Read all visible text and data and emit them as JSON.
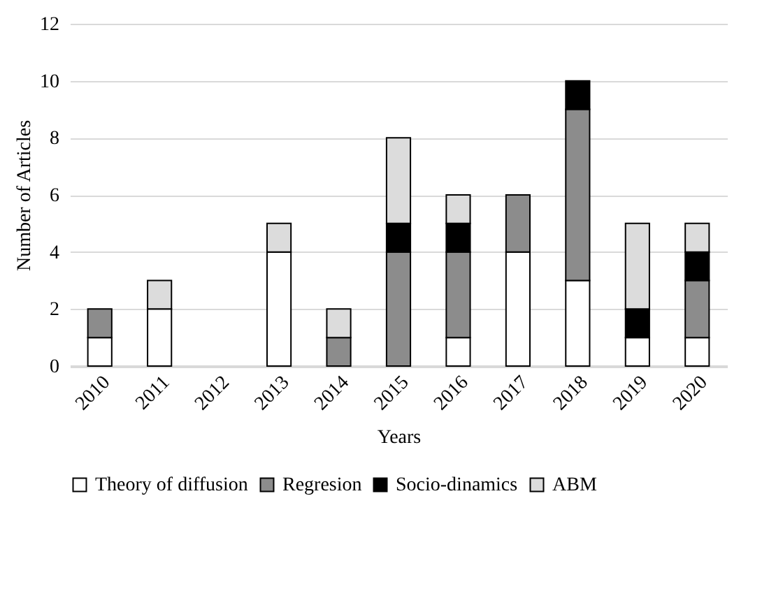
{
  "chart_data": {
    "type": "bar",
    "stacked": true,
    "xlabel": "Years",
    "ylabel": "Number of Articles",
    "categories": [
      "2010",
      "2011",
      "2012",
      "2013",
      "2014",
      "2015",
      "2016",
      "2017",
      "2018",
      "2019",
      "2020"
    ],
    "series": [
      {
        "name": "Theory of diffusion",
        "color": "#ffffff",
        "values": [
          1,
          2,
          0,
          4,
          0,
          0,
          1,
          4,
          3,
          1,
          1
        ]
      },
      {
        "name": "Regresion",
        "color": "#8c8c8c",
        "values": [
          1,
          0,
          0,
          0,
          1,
          4,
          3,
          2,
          6,
          0,
          2
        ]
      },
      {
        "name": "Socio-dinamics",
        "color": "#000000",
        "values": [
          0,
          0,
          0,
          0,
          0,
          1,
          1,
          0,
          1,
          1,
          1
        ]
      },
      {
        "name": "ABM",
        "color": "#dcdcdc",
        "values": [
          0,
          1,
          0,
          1,
          1,
          3,
          1,
          0,
          0,
          3,
          1
        ]
      }
    ],
    "ylim": [
      0,
      12
    ],
    "yticks": [
      0,
      2,
      4,
      6,
      8,
      10,
      12
    ],
    "grid": "y",
    "legend": "bottom"
  }
}
